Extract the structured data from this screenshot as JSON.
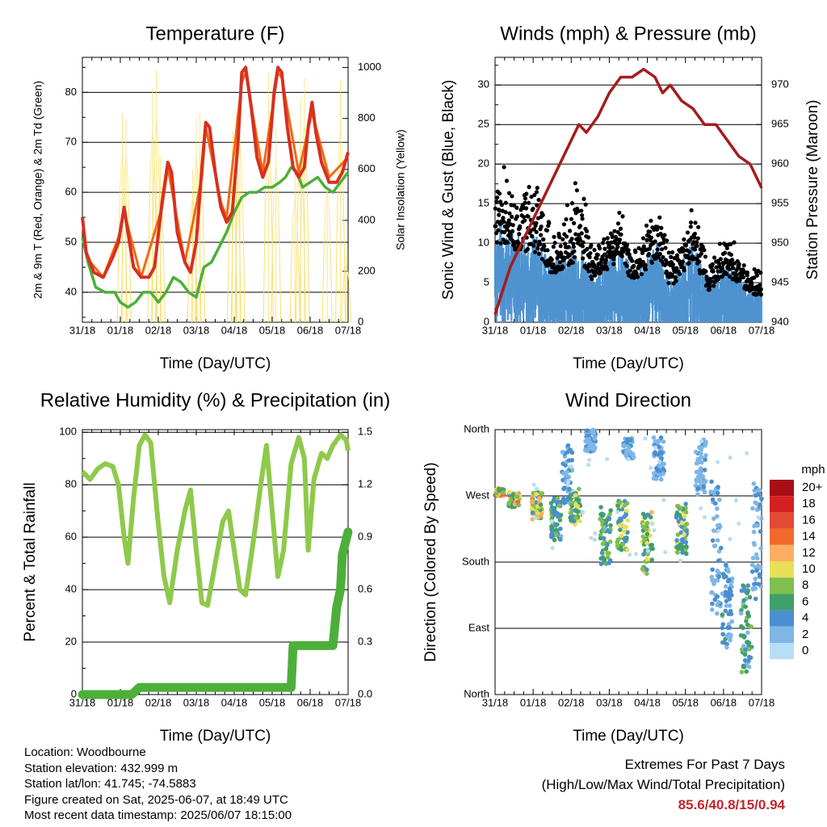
{
  "charts": {
    "temperature": {
      "title": "Temperature (F)",
      "xlabel": "Time (Day/UTC)",
      "ylabel_left": "2m & 9m T (Red, Orange) & 2m Td (Green)",
      "ylabel_right": "Solar Insolation (Yellow)"
    },
    "winds": {
      "title": "Winds (mph) & Pressure (mb)",
      "xlabel": "Time (Day/UTC)",
      "ylabel_left": "Sonic Wind & Gust (Blue, Black)",
      "ylabel_right": "Station Pressure (Maroon)"
    },
    "humidity": {
      "title": "Relative Humidity (%) & Precipitation (in)",
      "xlabel": "Time (Day/UTC)",
      "ylabel_left": "Percent & Total Rainfall"
    },
    "direction": {
      "title": "Wind Direction",
      "xlabel": "Time (Day/UTC)",
      "ylabel_left": "Direction (Colored By Speed)",
      "legend_title": "mph"
    }
  },
  "chart_data": [
    {
      "id": "temperature",
      "type": "line",
      "x_ticks": [
        "31/18",
        "01/18",
        "02/18",
        "03/18",
        "04/18",
        "05/18",
        "06/18",
        "07/18"
      ],
      "ylim": [
        34,
        87
      ],
      "y_ticks": [
        40,
        50,
        60,
        70,
        80
      ],
      "y2lim": [
        0,
        1040
      ],
      "y2_ticks": [
        0,
        200,
        400,
        600,
        800,
        1000
      ],
      "series": [
        {
          "color": "#d7301f",
          "axis": "left",
          "points": [
            [
              0,
              55
            ],
            [
              0.1,
              48
            ],
            [
              0.3,
              44
            ],
            [
              0.55,
              43
            ],
            [
              0.8,
              47
            ],
            [
              0.95,
              50
            ],
            [
              1.1,
              57
            ],
            [
              1.2,
              52
            ],
            [
              1.35,
              45
            ],
            [
              1.55,
              43
            ],
            [
              1.75,
              43
            ],
            [
              1.9,
              45
            ],
            [
              2.1,
              58
            ],
            [
              2.25,
              66
            ],
            [
              2.35,
              64
            ],
            [
              2.5,
              52
            ],
            [
              2.7,
              46
            ],
            [
              2.85,
              44
            ],
            [
              3.0,
              50
            ],
            [
              3.15,
              65
            ],
            [
              3.25,
              74
            ],
            [
              3.35,
              73
            ],
            [
              3.5,
              64
            ],
            [
              3.65,
              57
            ],
            [
              3.8,
              54
            ],
            [
              3.95,
              56
            ],
            [
              4.1,
              70
            ],
            [
              4.2,
              84
            ],
            [
              4.3,
              85
            ],
            [
              4.45,
              77
            ],
            [
              4.6,
              67
            ],
            [
              4.75,
              63
            ],
            [
              4.9,
              66
            ],
            [
              5.05,
              80
            ],
            [
              5.15,
              85
            ],
            [
              5.25,
              84
            ],
            [
              5.4,
              73
            ],
            [
              5.55,
              65
            ],
            [
              5.7,
              63
            ],
            [
              5.85,
              65
            ],
            [
              5.95,
              73
            ],
            [
              6.05,
              78
            ],
            [
              6.15,
              72
            ],
            [
              6.3,
              66
            ],
            [
              6.5,
              62
            ],
            [
              6.7,
              62
            ],
            [
              6.85,
              64
            ],
            [
              7.0,
              68
            ]
          ]
        },
        {
          "color": "#f16913",
          "axis": "left",
          "points": [
            [
              0.1,
              47
            ],
            [
              0.55,
              43
            ],
            [
              0.95,
              51
            ],
            [
              1.1,
              56
            ],
            [
              1.55,
              43
            ],
            [
              2.1,
              57
            ],
            [
              2.25,
              65
            ],
            [
              2.7,
              46
            ],
            [
              3.15,
              63
            ],
            [
              3.25,
              73
            ],
            [
              3.65,
              58
            ],
            [
              3.8,
              55
            ],
            [
              4.2,
              82
            ],
            [
              4.3,
              84
            ],
            [
              4.75,
              64
            ],
            [
              5.15,
              84
            ],
            [
              5.25,
              83
            ],
            [
              5.7,
              64
            ],
            [
              6.05,
              76
            ],
            [
              6.5,
              63
            ],
            [
              7.0,
              67
            ]
          ]
        },
        {
          "color": "#4daf3a",
          "axis": "left",
          "points": [
            [
              0,
              51
            ],
            [
              0.15,
              46
            ],
            [
              0.35,
              41
            ],
            [
              0.6,
              40
            ],
            [
              0.85,
              40
            ],
            [
              1.0,
              38
            ],
            [
              1.2,
              37
            ],
            [
              1.4,
              38
            ],
            [
              1.6,
              40
            ],
            [
              1.8,
              40
            ],
            [
              2.0,
              38
            ],
            [
              2.2,
              40
            ],
            [
              2.4,
              43
            ],
            [
              2.6,
              42
            ],
            [
              2.8,
              40
            ],
            [
              3.0,
              39
            ],
            [
              3.2,
              45
            ],
            [
              3.4,
              46
            ],
            [
              3.6,
              49
            ],
            [
              3.8,
              52
            ],
            [
              4.0,
              56
            ],
            [
              4.2,
              59
            ],
            [
              4.4,
              60
            ],
            [
              4.6,
              60
            ],
            [
              4.8,
              61
            ],
            [
              5.0,
              61
            ],
            [
              5.2,
              62
            ],
            [
              5.35,
              63
            ],
            [
              5.5,
              65
            ],
            [
              5.65,
              64
            ],
            [
              5.8,
              61
            ],
            [
              6.0,
              62
            ],
            [
              6.2,
              63
            ],
            [
              6.4,
              61
            ],
            [
              6.6,
              60
            ],
            [
              6.8,
              62
            ],
            [
              7.0,
              64
            ]
          ]
        }
      ],
      "insolation_peaks": [
        [
          1.05,
          820
        ],
        [
          1.15,
          800
        ],
        [
          1.85,
          920
        ],
        [
          1.95,
          990
        ],
        [
          2.05,
          650
        ],
        [
          2.9,
          600
        ],
        [
          3.0,
          800
        ],
        [
          3.1,
          820
        ],
        [
          3.95,
          750
        ],
        [
          4.05,
          820
        ],
        [
          4.15,
          880
        ],
        [
          4.9,
          980
        ],
        [
          5.1,
          760
        ],
        [
          5.6,
          600
        ],
        [
          5.75,
          880
        ],
        [
          5.85,
          960
        ],
        [
          6.45,
          640
        ],
        [
          6.8,
          950
        ],
        [
          6.95,
          280
        ]
      ]
    },
    {
      "id": "winds",
      "type": "scatter+line",
      "x_ticks": [
        "31/18",
        "01/18",
        "02/18",
        "03/18",
        "04/18",
        "05/18",
        "06/18",
        "07/18"
      ],
      "ylim": [
        0,
        33.5
      ],
      "y_ticks": [
        0,
        5,
        10,
        15,
        20,
        25,
        30
      ],
      "y2lim": [
        940,
        973.5
      ],
      "y2_ticks": [
        940,
        945,
        950,
        955,
        960,
        965,
        970
      ],
      "pressure": [
        [
          0,
          941
        ],
        [
          0.4,
          947
        ],
        [
          0.8,
          951
        ],
        [
          1.2,
          955
        ],
        [
          1.6,
          959
        ],
        [
          2.0,
          963
        ],
        [
          2.2,
          965
        ],
        [
          2.4,
          964
        ],
        [
          2.7,
          966
        ],
        [
          3.0,
          969
        ],
        [
          3.3,
          971
        ],
        [
          3.6,
          971
        ],
        [
          3.9,
          972
        ],
        [
          4.2,
          971
        ],
        [
          4.4,
          969
        ],
        [
          4.6,
          970
        ],
        [
          4.9,
          968
        ],
        [
          5.2,
          967
        ],
        [
          5.5,
          965
        ],
        [
          5.8,
          965
        ],
        [
          6.1,
          963
        ],
        [
          6.4,
          961
        ],
        [
          6.7,
          960
        ],
        [
          7.0,
          957
        ]
      ],
      "gust_activity": [
        [
          0.0,
          20
        ],
        [
          0.35,
          19
        ],
        [
          0.5,
          16
        ],
        [
          1.0,
          19
        ],
        [
          1.3,
          15
        ],
        [
          1.5,
          10
        ],
        [
          2.2,
          18
        ],
        [
          2.6,
          9
        ],
        [
          3.3,
          14
        ],
        [
          3.6,
          9
        ],
        [
          4.3,
          15
        ],
        [
          4.6,
          8
        ],
        [
          5.2,
          15
        ],
        [
          5.6,
          7
        ],
        [
          6.1,
          11
        ],
        [
          6.6,
          7
        ],
        [
          7.0,
          6
        ]
      ],
      "sustained_activity": [
        [
          0.0,
          10
        ],
        [
          0.5,
          9
        ],
        [
          1.0,
          9
        ],
        [
          1.5,
          6
        ],
        [
          2.2,
          8
        ],
        [
          2.6,
          5
        ],
        [
          3.3,
          8
        ],
        [
          3.6,
          5
        ],
        [
          4.3,
          8
        ],
        [
          4.6,
          4
        ],
        [
          5.2,
          8
        ],
        [
          5.6,
          4
        ],
        [
          6.1,
          6
        ],
        [
          6.6,
          4
        ],
        [
          7.0,
          3
        ]
      ]
    },
    {
      "id": "humidity",
      "type": "line",
      "x_ticks": [
        "31/18",
        "01/18",
        "02/18",
        "03/18",
        "04/18",
        "05/18",
        "06/18",
        "07/18"
      ],
      "ylim": [
        0,
        101
      ],
      "y_ticks": [
        0,
        20,
        40,
        60,
        80,
        100
      ],
      "y2lim": [
        0,
        1.515
      ],
      "y2_ticks": [
        "0.0",
        "0.3",
        "0.6",
        "0.9",
        "1.2",
        "1.5"
      ],
      "rh": [
        [
          0,
          85
        ],
        [
          0.2,
          82
        ],
        [
          0.4,
          86
        ],
        [
          0.6,
          88
        ],
        [
          0.8,
          87
        ],
        [
          0.95,
          80
        ],
        [
          1.1,
          60
        ],
        [
          1.2,
          50
        ],
        [
          1.35,
          75
        ],
        [
          1.5,
          95
        ],
        [
          1.65,
          99
        ],
        [
          1.8,
          96
        ],
        [
          2.0,
          65
        ],
        [
          2.15,
          45
        ],
        [
          2.3,
          35
        ],
        [
          2.5,
          55
        ],
        [
          2.7,
          70
        ],
        [
          2.85,
          78
        ],
        [
          3.0,
          55
        ],
        [
          3.15,
          35
        ],
        [
          3.3,
          34
        ],
        [
          3.5,
          50
        ],
        [
          3.7,
          66
        ],
        [
          3.85,
          70
        ],
        [
          4.0,
          55
        ],
        [
          4.15,
          40
        ],
        [
          4.3,
          38
        ],
        [
          4.5,
          58
        ],
        [
          4.7,
          80
        ],
        [
          4.85,
          95
        ],
        [
          5.0,
          70
        ],
        [
          5.15,
          45
        ],
        [
          5.3,
          55
        ],
        [
          5.5,
          88
        ],
        [
          5.7,
          98
        ],
        [
          5.85,
          90
        ],
        [
          5.95,
          55
        ],
        [
          6.1,
          82
        ],
        [
          6.3,
          92
        ],
        [
          6.45,
          90
        ],
        [
          6.6,
          95
        ],
        [
          6.8,
          99
        ],
        [
          6.95,
          97
        ],
        [
          7.0,
          93
        ]
      ],
      "rain": [
        [
          0,
          0
        ],
        [
          1.3,
          0
        ],
        [
          1.5,
          0.04
        ],
        [
          5.5,
          0.04
        ],
        [
          5.55,
          0.28
        ],
        [
          6.6,
          0.28
        ],
        [
          6.7,
          0.5
        ],
        [
          6.8,
          0.6
        ],
        [
          6.85,
          0.8
        ],
        [
          7.0,
          0.93
        ]
      ]
    },
    {
      "id": "direction",
      "type": "scatter",
      "x_ticks": [
        "31/18",
        "01/18",
        "02/18",
        "03/18",
        "04/18",
        "05/18",
        "06/18",
        "07/18"
      ],
      "y_ticks": [
        "North",
        "East",
        "South",
        "West",
        "North"
      ],
      "ylim": [
        0,
        360
      ],
      "legend": [
        "20+",
        "18",
        "16",
        "14",
        "12",
        "10",
        "8",
        "6",
        "4",
        "2",
        "0"
      ],
      "legend_colors": [
        "#a50f15",
        "#d42020",
        "#e34a33",
        "#f16a2b",
        "#fdae61",
        "#e8e058",
        "#7fbf4e",
        "#3fa067",
        "#4a8fcf",
        "#7fb6e6",
        "#b8def5"
      ],
      "clusters": [
        [
          0.1,
          275,
          5,
          12
        ],
        [
          0.5,
          265,
          10,
          11
        ],
        [
          1.1,
          258,
          20,
          10
        ],
        [
          1.6,
          240,
          30,
          6
        ],
        [
          1.9,
          300,
          40,
          4
        ],
        [
          2.1,
          255,
          25,
          8
        ],
        [
          2.5,
          345,
          15,
          3
        ],
        [
          2.9,
          215,
          40,
          7
        ],
        [
          3.35,
          230,
          35,
          8
        ],
        [
          3.5,
          335,
          15,
          3
        ],
        [
          4.0,
          205,
          45,
          9
        ],
        [
          4.3,
          320,
          30,
          3
        ],
        [
          4.9,
          225,
          35,
          8
        ],
        [
          5.4,
          310,
          40,
          3
        ],
        [
          5.8,
          200,
          90,
          3
        ],
        [
          6.1,
          120,
          60,
          4
        ],
        [
          6.6,
          90,
          60,
          6
        ],
        [
          6.9,
          210,
          80,
          3
        ]
      ]
    }
  ],
  "info": {
    "location": "Location: Woodbourne",
    "elevation": "Station elevation: 432.999 m",
    "latlon": "Station lat/lon: 41.745; -74.5883",
    "created": "Figure created on Sat, 2025-06-07, at 18:49 UTC",
    "recent": "Most recent data timestamp: 2025/06/07 18:15:00"
  },
  "extremes": {
    "line1": "Extremes For Past 7 Days",
    "line2": "(High/Low/Max Wind/Total Precipitation)",
    "values": "85.6/40.8/15/0.94"
  }
}
